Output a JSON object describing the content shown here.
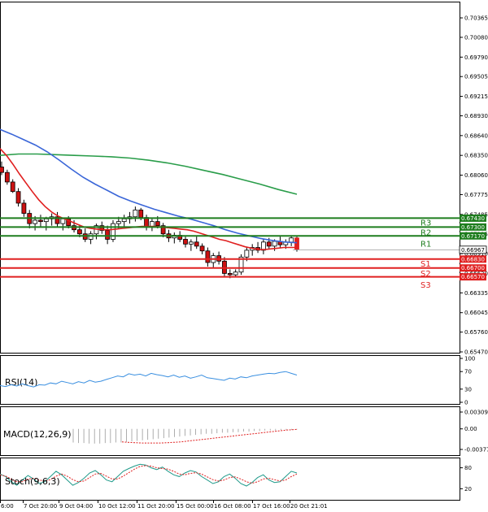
{
  "chart_data": [
    {
      "type": "candlestick",
      "y_ticks": [
        "0.70365",
        "0.70080",
        "0.69790",
        "0.69505",
        "0.69215",
        "0.68930",
        "0.68640",
        "0.68350",
        "0.68060",
        "0.67775",
        "0.67485",
        "0.67195",
        "0.66910",
        "0.66620",
        "0.66335",
        "0.66045",
        "0.65760",
        "0.65470"
      ],
      "ylim": [
        0.6547,
        0.70365
      ],
      "x_ticks": [
        "6:00",
        "7 Oct 20:00",
        "9 Oct 04:00",
        "10 Oct 12:00",
        "11 Oct 20:00",
        "15 Oct 00:00",
        "16 Oct 08:00",
        "17 Oct 16:00",
        "20 Oct 21:01"
      ],
      "current_price": "0.66967",
      "levels": [
        {
          "name": "R3",
          "value": 0.6743,
          "label": "0.67430",
          "color": "#1e7d1e"
        },
        {
          "name": "R2",
          "value": 0.673,
          "label": "0.67300",
          "color": "#1e7d1e"
        },
        {
          "name": "R1",
          "value": 0.6717,
          "label": "0.67170",
          "color": "#1e7d1e"
        },
        {
          "name": "S1",
          "value": 0.6683,
          "label": "0.66830",
          "color": "#e02020"
        },
        {
          "name": "S2",
          "value": 0.667,
          "label": "0.66700",
          "color": "#e02020"
        },
        {
          "name": "S3",
          "value": 0.6657,
          "label": "0.66570",
          "color": "#e02020"
        }
      ],
      "candles": [
        {
          "o": 0.6818,
          "h": 0.6826,
          "l": 0.6806,
          "c": 0.681
        },
        {
          "o": 0.681,
          "h": 0.6814,
          "l": 0.6792,
          "c": 0.6796
        },
        {
          "o": 0.6796,
          "h": 0.68,
          "l": 0.678,
          "c": 0.6782
        },
        {
          "o": 0.6782,
          "h": 0.6787,
          "l": 0.676,
          "c": 0.6765
        },
        {
          "o": 0.6765,
          "h": 0.677,
          "l": 0.6745,
          "c": 0.675
        },
        {
          "o": 0.675,
          "h": 0.6755,
          "l": 0.6728,
          "c": 0.6735
        },
        {
          "o": 0.6735,
          "h": 0.6746,
          "l": 0.6725,
          "c": 0.674
        },
        {
          "o": 0.674,
          "h": 0.6748,
          "l": 0.673,
          "c": 0.6738
        },
        {
          "o": 0.6738,
          "h": 0.6745,
          "l": 0.6725,
          "c": 0.6742
        },
        {
          "o": 0.6742,
          "h": 0.675,
          "l": 0.6732,
          "c": 0.6745
        },
        {
          "o": 0.6745,
          "h": 0.6752,
          "l": 0.673,
          "c": 0.6735
        },
        {
          "o": 0.6735,
          "h": 0.6744,
          "l": 0.6725,
          "c": 0.6742
        },
        {
          "o": 0.6742,
          "h": 0.6746,
          "l": 0.6728,
          "c": 0.6732
        },
        {
          "o": 0.6732,
          "h": 0.674,
          "l": 0.6722,
          "c": 0.6726
        },
        {
          "o": 0.6726,
          "h": 0.6733,
          "l": 0.6715,
          "c": 0.672
        },
        {
          "o": 0.672,
          "h": 0.6728,
          "l": 0.6708,
          "c": 0.6712
        },
        {
          "o": 0.6712,
          "h": 0.6724,
          "l": 0.6705,
          "c": 0.672
        },
        {
          "o": 0.672,
          "h": 0.6735,
          "l": 0.6712,
          "c": 0.6732
        },
        {
          "o": 0.6732,
          "h": 0.6738,
          "l": 0.672,
          "c": 0.6725
        },
        {
          "o": 0.6725,
          "h": 0.6732,
          "l": 0.6705,
          "c": 0.6712
        },
        {
          "o": 0.6712,
          "h": 0.674,
          "l": 0.6708,
          "c": 0.6735
        },
        {
          "o": 0.6735,
          "h": 0.6745,
          "l": 0.6728,
          "c": 0.6738
        },
        {
          "o": 0.6738,
          "h": 0.6748,
          "l": 0.673,
          "c": 0.6742
        },
        {
          "o": 0.6742,
          "h": 0.6752,
          "l": 0.6735,
          "c": 0.6745
        },
        {
          "o": 0.6745,
          "h": 0.676,
          "l": 0.6738,
          "c": 0.6755
        },
        {
          "o": 0.6755,
          "h": 0.6758,
          "l": 0.674,
          "c": 0.6744
        },
        {
          "o": 0.6744,
          "h": 0.6748,
          "l": 0.6725,
          "c": 0.673
        },
        {
          "o": 0.673,
          "h": 0.6742,
          "l": 0.6724,
          "c": 0.6738
        },
        {
          "o": 0.6738,
          "h": 0.6746,
          "l": 0.6728,
          "c": 0.6732
        },
        {
          "o": 0.6732,
          "h": 0.6736,
          "l": 0.6715,
          "c": 0.672
        },
        {
          "o": 0.672,
          "h": 0.6726,
          "l": 0.6708,
          "c": 0.6714
        },
        {
          "o": 0.6714,
          "h": 0.6722,
          "l": 0.6706,
          "c": 0.6718
        },
        {
          "o": 0.6718,
          "h": 0.6724,
          "l": 0.6708,
          "c": 0.6712
        },
        {
          "o": 0.6712,
          "h": 0.6716,
          "l": 0.67,
          "c": 0.6705
        },
        {
          "o": 0.6705,
          "h": 0.6712,
          "l": 0.6695,
          "c": 0.6708
        },
        {
          "o": 0.6708,
          "h": 0.6716,
          "l": 0.6698,
          "c": 0.6702
        },
        {
          "o": 0.6702,
          "h": 0.6706,
          "l": 0.669,
          "c": 0.6695
        },
        {
          "o": 0.6695,
          "h": 0.67,
          "l": 0.6672,
          "c": 0.6678
        },
        {
          "o": 0.6678,
          "h": 0.6692,
          "l": 0.667,
          "c": 0.6688
        },
        {
          "o": 0.6688,
          "h": 0.6694,
          "l": 0.6675,
          "c": 0.668
        },
        {
          "o": 0.668,
          "h": 0.6686,
          "l": 0.6658,
          "c": 0.6662
        },
        {
          "o": 0.6662,
          "h": 0.6668,
          "l": 0.6655,
          "c": 0.666
        },
        {
          "o": 0.666,
          "h": 0.6668,
          "l": 0.6656,
          "c": 0.6664
        },
        {
          "o": 0.6664,
          "h": 0.669,
          "l": 0.666,
          "c": 0.6686
        },
        {
          "o": 0.6686,
          "h": 0.67,
          "l": 0.668,
          "c": 0.6696
        },
        {
          "o": 0.6696,
          "h": 0.6705,
          "l": 0.6688,
          "c": 0.67
        },
        {
          "o": 0.67,
          "h": 0.6708,
          "l": 0.6692,
          "c": 0.6696
        },
        {
          "o": 0.6696,
          "h": 0.6712,
          "l": 0.669,
          "c": 0.6708
        },
        {
          "o": 0.6708,
          "h": 0.6714,
          "l": 0.6698,
          "c": 0.6702
        },
        {
          "o": 0.6702,
          "h": 0.6712,
          "l": 0.6695,
          "c": 0.6709
        },
        {
          "o": 0.6709,
          "h": 0.6716,
          "l": 0.67,
          "c": 0.6704
        },
        {
          "o": 0.6704,
          "h": 0.6712,
          "l": 0.6698,
          "c": 0.6708
        },
        {
          "o": 0.6708,
          "h": 0.6718,
          "l": 0.6702,
          "c": 0.6714
        },
        {
          "o": 0.6714,
          "h": 0.6716,
          "l": 0.6694,
          "c": 0.6697
        }
      ],
      "ma_red": [
        0.6845,
        0.6835,
        0.6822,
        0.6808,
        0.6795,
        0.6782,
        0.677,
        0.676,
        0.6752,
        0.6746,
        0.6742,
        0.6738,
        0.6734,
        0.673,
        0.6728,
        0.6727,
        0.6726,
        0.6726,
        0.6727,
        0.6728,
        0.6729,
        0.673,
        0.6731,
        0.6731,
        0.6731,
        0.673,
        0.6729,
        0.6728,
        0.6727,
        0.6726,
        0.6724,
        0.6721,
        0.6718,
        0.6715,
        0.6712,
        0.671,
        0.6707,
        0.6704,
        0.6701,
        0.6699,
        0.6697,
        0.6697,
        0.6698,
        0.6699,
        0.67,
        0.67,
        0.67
      ],
      "ma_blue": [
        0.6873,
        0.6866,
        0.6858,
        0.685,
        0.684,
        0.6828,
        0.6815,
        0.6803,
        0.6793,
        0.6784,
        0.6775,
        0.6768,
        0.6762,
        0.6756,
        0.6751,
        0.6746,
        0.6742,
        0.6737,
        0.6732,
        0.6726,
        0.6721,
        0.6717,
        0.6713,
        0.671,
        0.6708,
        0.6707
      ],
      "ma_green": [
        0.6835,
        0.6837,
        0.6837,
        0.6836,
        0.6835,
        0.6834,
        0.6833,
        0.6831,
        0.6828,
        0.6824,
        0.6819,
        0.6813,
        0.6807,
        0.68,
        0.6793,
        0.6785,
        0.6778
      ]
    },
    {
      "type": "line",
      "title": "RSI(14)",
      "y_ticks": [
        "100",
        "70",
        "30",
        "0"
      ],
      "ylim": [
        0,
        100
      ],
      "values": [
        38,
        36,
        40,
        37,
        42,
        38,
        35,
        40,
        39,
        44,
        42,
        48,
        45,
        42,
        47,
        44,
        50,
        46,
        48,
        52,
        56,
        60,
        58,
        65,
        62,
        64,
        60,
        66,
        63,
        61,
        58,
        62,
        57,
        60,
        55,
        58,
        62,
        56,
        54,
        52,
        50,
        55,
        53,
        58,
        56,
        60,
        62,
        64,
        66,
        65,
        68,
        70,
        66,
        62
      ]
    },
    {
      "type": "bar",
      "title": "MACD(12,26,9)",
      "y_ticks": [
        "0.003093",
        "0.00",
        "-0.003776"
      ],
      "ylim": [
        -0.003776,
        0.003093
      ],
      "histogram": [
        -0.0025,
        -0.0026,
        -0.0026,
        -0.0027,
        -0.0027,
        -0.0027,
        -0.0026,
        -0.0026,
        -0.0025,
        -0.0025,
        -0.0024,
        -0.0023,
        -0.0022,
        -0.0021,
        -0.002,
        -0.0019,
        -0.0018,
        -0.0017,
        -0.0016,
        -0.0015,
        -0.0014,
        -0.0013,
        -0.0012,
        -0.0011,
        -0.001,
        -0.0009,
        -0.0009,
        -0.0008,
        -0.0007,
        -0.0007,
        -0.0006,
        -0.0006,
        -0.0005,
        -0.0005,
        -0.0004,
        -0.0004,
        -0.0003,
        -0.0003,
        -0.0003,
        -0.0002,
        -0.0002,
        -0.0002,
        -0.0001
      ],
      "signal": [
        -0.0024,
        -0.0025,
        -0.0026,
        -0.0026,
        -0.0026,
        -0.0025,
        -0.0024,
        -0.0022,
        -0.002,
        -0.0018,
        -0.0016,
        -0.0014,
        -0.0012,
        -0.001,
        -0.0008,
        -0.0006,
        -0.0004,
        -0.0002,
        -0.0001
      ]
    },
    {
      "type": "line",
      "title": "Stoch(9,6,3)",
      "y_ticks": [
        "80",
        "20"
      ],
      "ylim": [
        0,
        100
      ],
      "main": [
        62,
        55,
        40,
        30,
        45,
        58,
        48,
        35,
        40,
        55,
        70,
        60,
        45,
        30,
        38,
        50,
        65,
        72,
        60,
        45,
        40,
        55,
        70,
        78,
        85,
        90,
        88,
        80,
        75,
        82,
        70,
        60,
        55,
        65,
        72,
        68,
        55,
        45,
        35,
        40,
        55,
        62,
        50,
        35,
        28,
        38,
        52,
        60,
        45,
        38,
        40,
        55,
        70,
        65
      ],
      "signal": [
        60,
        56,
        48,
        40,
        40,
        48,
        50,
        45,
        42,
        46,
        56,
        62,
        56,
        46,
        40,
        42,
        52,
        62,
        64,
        56,
        48,
        48,
        56,
        66,
        76,
        84,
        86,
        85,
        80,
        78,
        76,
        70,
        62,
        60,
        64,
        66,
        62,
        54,
        46,
        42,
        45,
        52,
        54,
        48,
        40,
        36,
        40,
        48,
        50,
        46,
        42,
        45,
        55,
        62
      ]
    }
  ]
}
